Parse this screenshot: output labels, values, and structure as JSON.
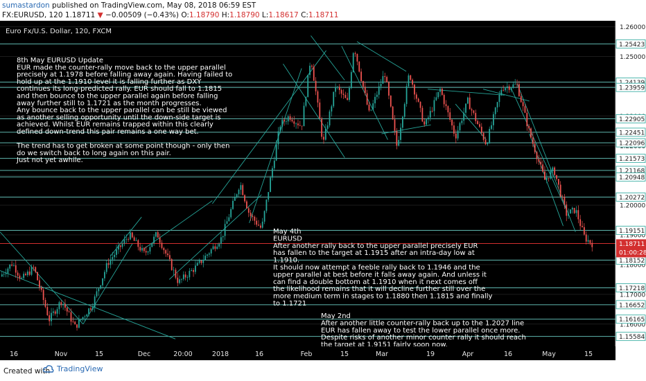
{
  "header": {
    "publisher_name": "sumastardon",
    "publisher_rest": " published on TradingView.com, May 08, 2018 06:59 EST",
    "symbol": "FX:EURUSD, 120",
    "last": "1.18711",
    "change": "−0.00509 (−0.43%)",
    "o_label": "O:",
    "o_value": "1.18790",
    "h_label": "H:",
    "h_value": "1.18790",
    "l_label": "L:",
    "l_value": "1.18617",
    "c_label": "C:",
    "c_value": "1.18711"
  },
  "chart_title": "Euro Fx/U.S. Dollar, 120, FXCM",
  "footer": {
    "created_with": "Created with",
    "brand": "TradingView"
  },
  "colors": {
    "background": "#000000",
    "up": "#26a69a",
    "down": "#ef5350",
    "trendline": "#26a69a",
    "last_price": "#d32f2f"
  },
  "notes": {
    "may8": [
      "8th May  EURUSD Update",
      "EUR made the counter-rally move back to the upper parallel",
      "precisely at 1.1978 before falling away again. Having failed to",
      "hold up at the 1.1910 level it is falling further as DXY",
      "continues its long-predicted rally. EUR should fall to 1.1815",
      "and then bounce to the upper parallel again before falling",
      "away further still to 1.1721 as the month progresses.",
      "Any bounce back to the upper parallel can be still be viewed",
      "as another selling opportunity until the down-side target is",
      "achieved. Whilst EUR remains trapped within this clearly",
      "defined down-trend this pair remains a one way bet.",
      "",
      "The trend has to get broken at some point though - only then",
      "do we switch back to long again on this pair.",
      "Just not yet awhile."
    ],
    "may4": [
      "May 4th",
      "EURUSD",
      "After another rally back to the upper parallel precisely EUR",
      "has fallen to the target at 1.1915 after an intra-day low at",
      "1.1910.",
      "It should now attempt a feeble rally back to 1.1946 and the",
      "upper parallel at best before it falls away again. And unless it",
      "can find a double bottom at 1.1910 when it next comes off",
      "the likelihood remains that it will decline further still over the",
      "more medium term in stages to 1.1880 then 1.1815 and finally",
      "to 1.1721"
    ],
    "may2": [
      "May 2nd",
      "After another little counter-rally back up to the 1.2027 line",
      "EUR has fallen away to test the lower parallel once more.",
      "Despite risks of another minor counter rally it should reach",
      "the target at 1.9151 fairly soon now."
    ]
  },
  "chart_data": {
    "type": "candlestick",
    "symbol": "FX:EURUSD",
    "timeframe": "120",
    "title": "Euro Fx/U.S. Dollar, 120, FXCM",
    "ylim": [
      1.1525,
      1.262
    ],
    "y_ticks": [
      "1.26000",
      "1.25000",
      "1.24000",
      "1.23000",
      "1.22000",
      "1.21000",
      "1.20000",
      "1.19000",
      "1.18000",
      "1.17000",
      "1.16000"
    ],
    "x_ticks": [
      "16",
      "Nov",
      "15",
      "Dec",
      "20:00",
      "2018",
      "16",
      "Feb",
      "15",
      "Mar",
      "19",
      "Apr",
      "16",
      "May",
      "15"
    ],
    "horizontal_levels": [
      "1.25423",
      "1.24139",
      "1.23959",
      "1.22905",
      "1.22451",
      "1.22096",
      "1.21573",
      "1.21168",
      "1.20948",
      "1.20272",
      "1.19151",
      "1.18152",
      "1.17218",
      "1.16652",
      "1.16165",
      "1.15584"
    ],
    "last_price": "1.18711",
    "countdown": "01:00:28",
    "path": [
      {
        "t": 0.0,
        "p": 1.176
      },
      {
        "t": 0.02,
        "p": 1.1805
      },
      {
        "t": 0.035,
        "p": 1.175
      },
      {
        "t": 0.055,
        "p": 1.179
      },
      {
        "t": 0.08,
        "p": 1.1615
      },
      {
        "t": 0.1,
        "p": 1.168
      },
      {
        "t": 0.122,
        "p": 1.159
      },
      {
        "t": 0.15,
        "p": 1.1665
      },
      {
        "t": 0.175,
        "p": 1.1805
      },
      {
        "t": 0.21,
        "p": 1.19
      },
      {
        "t": 0.235,
        "p": 1.1835
      },
      {
        "t": 0.255,
        "p": 1.1905
      },
      {
        "t": 0.29,
        "p": 1.174
      },
      {
        "t": 0.32,
        "p": 1.1795
      },
      {
        "t": 0.36,
        "p": 1.189
      },
      {
        "t": 0.39,
        "p": 1.2075
      },
      {
        "t": 0.405,
        "p": 1.197
      },
      {
        "t": 0.425,
        "p": 1.192
      },
      {
        "t": 0.455,
        "p": 1.227
      },
      {
        "t": 0.47,
        "p": 1.23
      },
      {
        "t": 0.49,
        "p": 1.2265
      },
      {
        "t": 0.505,
        "p": 1.25
      },
      {
        "t": 0.525,
        "p": 1.2205
      },
      {
        "t": 0.545,
        "p": 1.24
      },
      {
        "t": 0.565,
        "p": 1.2345
      },
      {
        "t": 0.575,
        "p": 1.2537
      },
      {
        "t": 0.6,
        "p": 1.2305
      },
      {
        "t": 0.625,
        "p": 1.2445
      },
      {
        "t": 0.645,
        "p": 1.2195
      },
      {
        "t": 0.665,
        "p": 1.2445
      },
      {
        "t": 0.69,
        "p": 1.2265
      },
      {
        "t": 0.715,
        "p": 1.239
      },
      {
        "t": 0.74,
        "p": 1.223
      },
      {
        "t": 0.76,
        "p": 1.235
      },
      {
        "t": 0.79,
        "p": 1.2205
      },
      {
        "t": 0.815,
        "p": 1.2395
      },
      {
        "t": 0.84,
        "p": 1.2405
      },
      {
        "t": 0.86,
        "p": 1.2245
      },
      {
        "t": 0.885,
        "p": 1.2085
      },
      {
        "t": 0.9,
        "p": 1.212
      },
      {
        "t": 0.92,
        "p": 1.197
      },
      {
        "t": 0.935,
        "p": 1.1985
      },
      {
        "t": 0.95,
        "p": 1.189
      },
      {
        "t": 0.962,
        "p": 1.1871
      }
    ]
  }
}
